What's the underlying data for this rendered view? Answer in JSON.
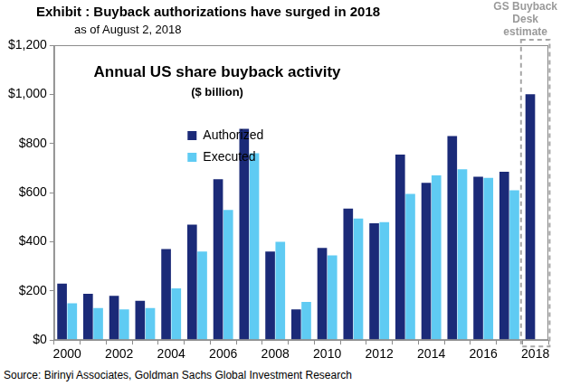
{
  "chart_data": {
    "type": "bar",
    "title": "Exhibit : Buyback authorizations have surged in 2018",
    "subtitle": "as of August 2, 2018",
    "panel_title": "Annual US share buyback activity",
    "panel_subtitle": "($ billion)",
    "annotation": "GS Buyback Desk estimate",
    "source": "Source: Birinyi Associates, Goldman Sachs Global Investment Research",
    "categories": [
      "2000",
      null,
      "2002",
      null,
      "2004",
      null,
      "2006",
      null,
      "2008",
      null,
      "2010",
      null,
      "2012",
      null,
      "2014",
      null,
      "2016",
      null,
      "2018"
    ],
    "series": [
      {
        "name": "Authorized",
        "color": "#1b2a78",
        "values": [
          230,
          188,
          180,
          160,
          370,
          470,
          655,
          860,
          360,
          125,
          375,
          535,
          475,
          755,
          640,
          830,
          665,
          685,
          1000
        ]
      },
      {
        "name": "Executed",
        "color": "#5fcbf3",
        "values": [
          150,
          130,
          125,
          130,
          210,
          360,
          530,
          760,
          400,
          155,
          345,
          495,
          480,
          595,
          670,
          695,
          660,
          610,
          null
        ]
      }
    ],
    "ylim": [
      0,
      1200
    ],
    "yticks": [
      {
        "value": 0,
        "label": "$0"
      },
      {
        "value": 200,
        "label": "$200"
      },
      {
        "value": 400,
        "label": "$400"
      },
      {
        "value": 600,
        "label": "$600"
      },
      {
        "value": 800,
        "label": "$800"
      },
      {
        "value": 1000,
        "label": "$1,000"
      },
      {
        "value": 1200,
        "label": "$1,200"
      }
    ],
    "grid": false,
    "legend": "upper left"
  }
}
